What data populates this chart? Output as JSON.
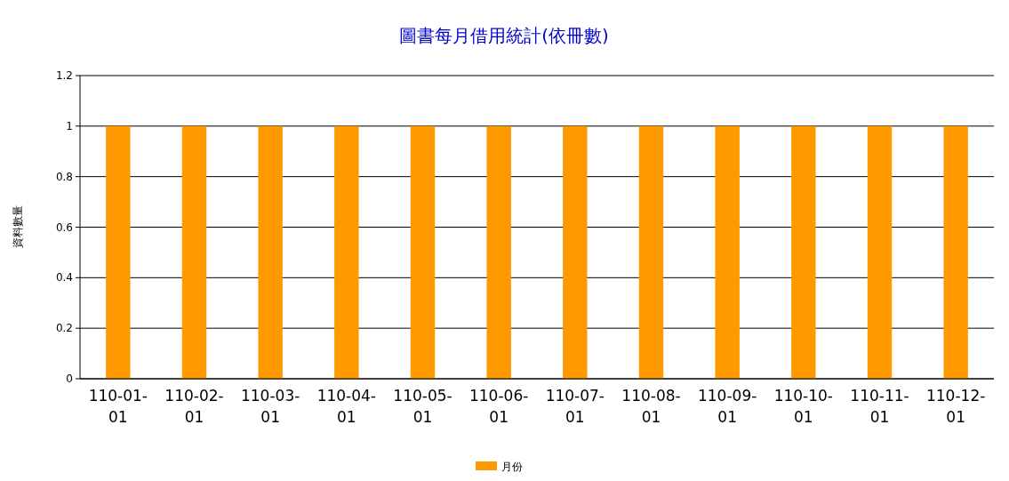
{
  "chart_data": {
    "type": "bar",
    "title": "圖書每月借用統計(依冊數)",
    "ylabel": "資料數量",
    "categories": [
      "110-01-01",
      "110-02-01",
      "110-03-01",
      "110-04-01",
      "110-05-01",
      "110-06-01",
      "110-07-01",
      "110-08-01",
      "110-09-01",
      "110-10-01",
      "110-11-01",
      "110-12-01"
    ],
    "series": [
      {
        "name": "月份",
        "color": "#ff9900",
        "values": [
          1,
          1,
          1,
          1,
          1,
          1,
          1,
          1,
          1,
          1,
          1,
          1
        ]
      }
    ],
    "ylim": [
      0,
      1.2
    ],
    "yticks": [
      0,
      0.2,
      0.4,
      0.6,
      0.8,
      1,
      1.2
    ],
    "grid": "y",
    "legend": "bottom"
  }
}
